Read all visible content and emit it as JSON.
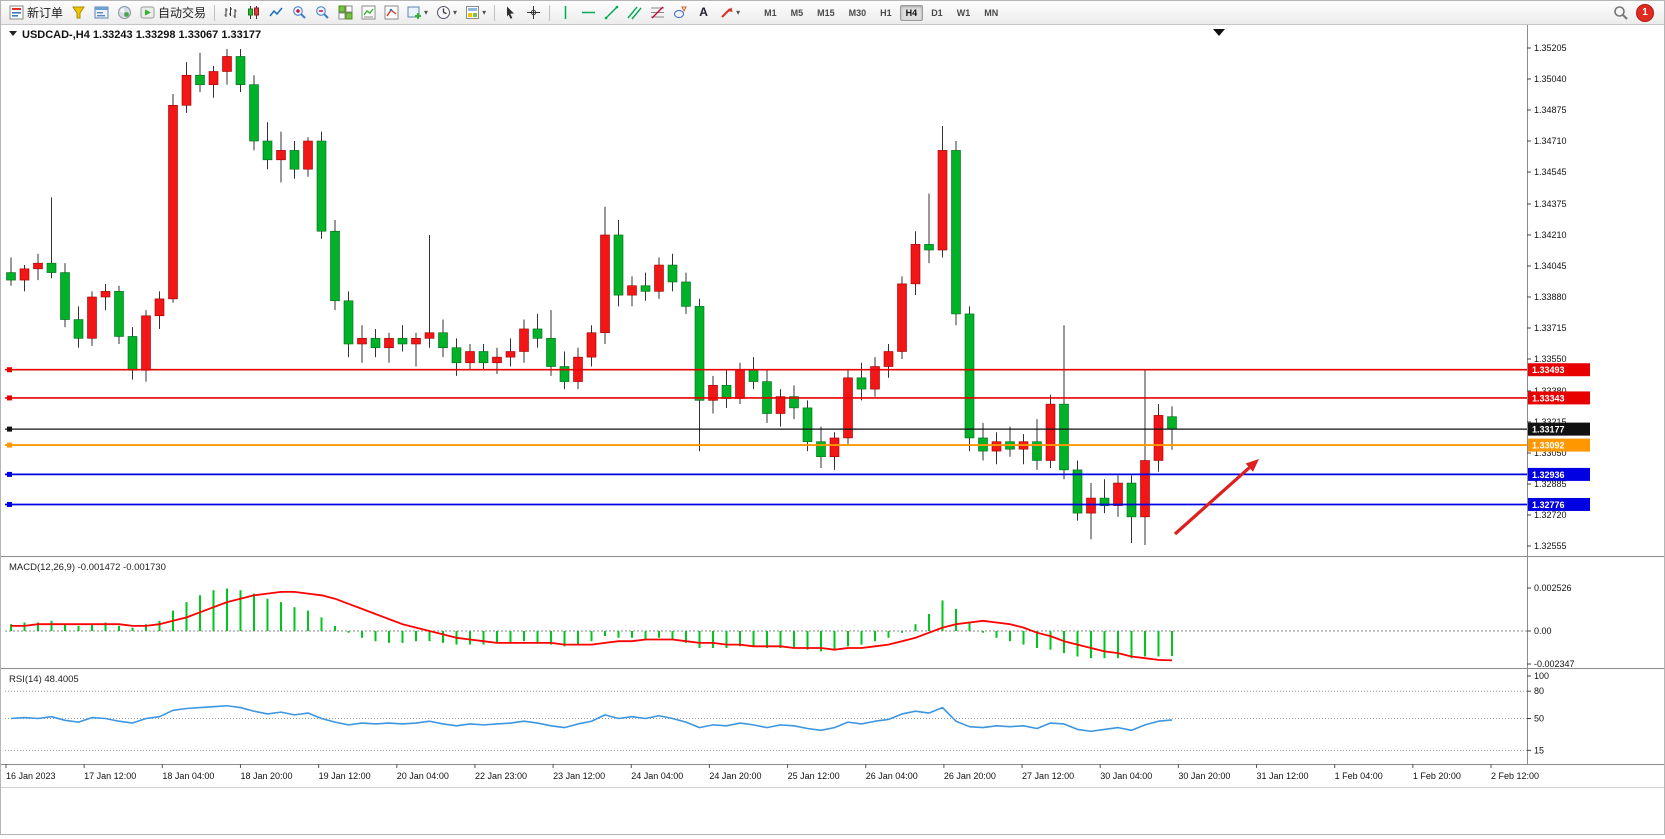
{
  "toolbar": {
    "new_order_label": "新订单",
    "autotrading_label": "自动交易",
    "timeframes": [
      "M1",
      "M5",
      "M15",
      "M30",
      "H1",
      "H4",
      "D1",
      "W1",
      "MN"
    ],
    "active_timeframe": "H4",
    "notification_count": "1"
  },
  "icons": {
    "caret_glyph": "▾",
    "text_tool_glyph": "A"
  },
  "chart": {
    "title_symbol": "USDCAD-,H4",
    "title_quotes": "1.33243 1.33298 1.33067 1.33177"
  },
  "chart_data": [
    {
      "type": "candlestick",
      "symbol": "USDCAD",
      "timeframe": "H4",
      "title": "USDCAD-,H4 1.33243 1.33298 1.33067 1.33177",
      "ylim": [
        1.32555,
        1.35205
      ],
      "y_axis_ticks": [
        "1.35205",
        "1.35040",
        "1.34875",
        "1.34710",
        "1.34545",
        "1.34375",
        "1.34210",
        "1.34045",
        "1.33880",
        "1.33715",
        "1.33550",
        "1.33380",
        "1.33215",
        "1.33050",
        "1.32885",
        "1.32720",
        "1.32555"
      ],
      "colors": {
        "bull": "#f21616",
        "bear": "#00b227",
        "wick": "#333333",
        "bull_edge": "#9e0000",
        "bear_edge": "#00691a"
      },
      "hlines": [
        {
          "price": 1.33493,
          "color": "#e80000",
          "label": "1.33493",
          "width": 1.6
        },
        {
          "price": 1.33343,
          "color": "#e80000",
          "label": "1.33343",
          "width": 1.6
        },
        {
          "price": 1.33177,
          "color": "#111111",
          "label": "1.33177",
          "width": 1.2,
          "role": "current-price"
        },
        {
          "price": 1.33092,
          "color": "#ff9800",
          "label": "1.33092",
          "width": 1.8
        },
        {
          "price": 1.32936,
          "color": "#0000e0",
          "label": "1.32936",
          "width": 1.8
        },
        {
          "price": 1.32776,
          "color": "#0000e0",
          "label": "1.32776",
          "width": 1.8
        }
      ],
      "annotation_arrow": {
        "from": [
          1174,
          509
        ],
        "to": [
          1258,
          434
        ],
        "color": "#dd1f1f"
      },
      "ohlc": [
        [
          1.3401,
          1.3409,
          1.3394,
          1.3397
        ],
        [
          1.3397,
          1.3405,
          1.3391,
          1.3403
        ],
        [
          1.3403,
          1.3411,
          1.3397,
          1.3406
        ],
        [
          1.3406,
          1.3441,
          1.3398,
          1.3401
        ],
        [
          1.3401,
          1.3406,
          1.3372,
          1.3376
        ],
        [
          1.3376,
          1.3383,
          1.3361,
          1.3366
        ],
        [
          1.3366,
          1.3391,
          1.3362,
          1.3388
        ],
        [
          1.3388,
          1.3395,
          1.3381,
          1.3391
        ],
        [
          1.3391,
          1.3394,
          1.3363,
          1.3367
        ],
        [
          1.3367,
          1.3372,
          1.3344,
          1.3349
        ],
        [
          1.3349,
          1.3381,
          1.3343,
          1.3378
        ],
        [
          1.3378,
          1.3391,
          1.3371,
          1.3387
        ],
        [
          1.3387,
          1.3496,
          1.3385,
          1.349
        ],
        [
          1.349,
          1.3513,
          1.3486,
          1.3506
        ],
        [
          1.3506,
          1.3518,
          1.3497,
          1.3501
        ],
        [
          1.3501,
          1.3511,
          1.3494,
          1.3508
        ],
        [
          1.3508,
          1.352,
          1.3501,
          1.3516
        ],
        [
          1.3516,
          1.352,
          1.3497,
          1.3501
        ],
        [
          1.3501,
          1.3506,
          1.3466,
          1.3471
        ],
        [
          1.3471,
          1.3481,
          1.3456,
          1.3461
        ],
        [
          1.3461,
          1.3476,
          1.3449,
          1.3466
        ],
        [
          1.3466,
          1.3471,
          1.3451,
          1.3456
        ],
        [
          1.3456,
          1.3473,
          1.3452,
          1.3471
        ],
        [
          1.3471,
          1.3476,
          1.3419,
          1.3423
        ],
        [
          1.3423,
          1.3429,
          1.3381,
          1.3386
        ],
        [
          1.3386,
          1.3391,
          1.3356,
          1.3363
        ],
        [
          1.3363,
          1.3373,
          1.3353,
          1.3366
        ],
        [
          1.3366,
          1.3371,
          1.3356,
          1.3361
        ],
        [
          1.3361,
          1.3369,
          1.3353,
          1.3366
        ],
        [
          1.3366,
          1.3373,
          1.3359,
          1.3363
        ],
        [
          1.3363,
          1.3369,
          1.3351,
          1.3366
        ],
        [
          1.3366,
          1.3421,
          1.3361,
          1.3369
        ],
        [
          1.3369,
          1.3376,
          1.3356,
          1.3361
        ],
        [
          1.3361,
          1.3366,
          1.3346,
          1.3353
        ],
        [
          1.3353,
          1.3363,
          1.3349,
          1.3359
        ],
        [
          1.3359,
          1.3363,
          1.3349,
          1.3353
        ],
        [
          1.3353,
          1.3361,
          1.3347,
          1.3356
        ],
        [
          1.3356,
          1.3366,
          1.3351,
          1.3359
        ],
        [
          1.3359,
          1.3376,
          1.3353,
          1.3371
        ],
        [
          1.3371,
          1.3379,
          1.3361,
          1.3366
        ],
        [
          1.3366,
          1.3381,
          1.3346,
          1.3351
        ],
        [
          1.3351,
          1.3359,
          1.3339,
          1.3343
        ],
        [
          1.3343,
          1.3361,
          1.3339,
          1.3356
        ],
        [
          1.3356,
          1.3373,
          1.3351,
          1.3369
        ],
        [
          1.3369,
          1.3436,
          1.3363,
          1.3421
        ],
        [
          1.3421,
          1.3429,
          1.3383,
          1.3389
        ],
        [
          1.3389,
          1.3399,
          1.3383,
          1.3394
        ],
        [
          1.3394,
          1.3401,
          1.3386,
          1.3391
        ],
        [
          1.3391,
          1.3409,
          1.3387,
          1.3405
        ],
        [
          1.3405,
          1.3411,
          1.3391,
          1.3396
        ],
        [
          1.3396,
          1.3401,
          1.3379,
          1.3383
        ],
        [
          1.3383,
          1.3387,
          1.3306,
          1.3333
        ],
        [
          1.3333,
          1.3346,
          1.3326,
          1.3341
        ],
        [
          1.3341,
          1.3349,
          1.3329,
          1.3334
        ],
        [
          1.3334,
          1.3353,
          1.3331,
          1.3349
        ],
        [
          1.3349,
          1.3356,
          1.3339,
          1.3343
        ],
        [
          1.3343,
          1.3349,
          1.3321,
          1.3326
        ],
        [
          1.3326,
          1.3339,
          1.3319,
          1.3335
        ],
        [
          1.3335,
          1.3341,
          1.3323,
          1.3329
        ],
        [
          1.3329,
          1.3333,
          1.3306,
          1.3311
        ],
        [
          1.3311,
          1.3319,
          1.3297,
          1.3303
        ],
        [
          1.3303,
          1.3316,
          1.3296,
          1.3313
        ],
        [
          1.3313,
          1.3349,
          1.3309,
          1.3345
        ],
        [
          1.3345,
          1.3353,
          1.3333,
          1.3339
        ],
        [
          1.3339,
          1.3356,
          1.3335,
          1.3351
        ],
        [
          1.3351,
          1.3363,
          1.3345,
          1.3359
        ],
        [
          1.3359,
          1.3399,
          1.3355,
          1.3395
        ],
        [
          1.3395,
          1.3423,
          1.3389,
          1.3416
        ],
        [
          1.3416,
          1.3443,
          1.3406,
          1.3413
        ],
        [
          1.3413,
          1.3479,
          1.3409,
          1.3466
        ],
        [
          1.3466,
          1.3471,
          1.3373,
          1.3379
        ],
        [
          1.3379,
          1.3383,
          1.3306,
          1.3313
        ],
        [
          1.3313,
          1.3321,
          1.3301,
          1.3306
        ],
        [
          1.3306,
          1.3316,
          1.3299,
          1.3311
        ],
        [
          1.3311,
          1.3319,
          1.3303,
          1.3307
        ],
        [
          1.3307,
          1.3315,
          1.3299,
          1.3311
        ],
        [
          1.3311,
          1.3323,
          1.3296,
          1.3301
        ],
        [
          1.3301,
          1.3336,
          1.3297,
          1.3331
        ],
        [
          1.3331,
          1.3373,
          1.3291,
          1.3296
        ],
        [
          1.3296,
          1.3301,
          1.3269,
          1.3273
        ],
        [
          1.3273,
          1.3289,
          1.3259,
          1.3281
        ],
        [
          1.3281,
          1.3291,
          1.3273,
          1.3277
        ],
        [
          1.3277,
          1.3293,
          1.3271,
          1.3289
        ],
        [
          1.3289,
          1.3293,
          1.3257,
          1.3271
        ],
        [
          1.3271,
          1.3349,
          1.3256,
          1.3301
        ],
        [
          1.3301,
          1.3331,
          1.3295,
          1.3325
        ],
        [
          1.33243,
          1.33298,
          1.33067,
          1.33177
        ]
      ]
    },
    {
      "type": "bar",
      "name": "MACD",
      "label": "MACD(12,26,9) -0.001472 -0.001730",
      "params": "12,26,9",
      "last_macd": -0.001472,
      "last_signal": -0.00173,
      "y_axis_ticks": [
        "0.002526",
        "0.00",
        "-0.002347"
      ],
      "y_axis_values": [
        0.002526,
        0,
        -0.002347
      ],
      "colors": {
        "histogram": "#00c61c",
        "signal": "#ff0000"
      },
      "values": [
        0.0004,
        0.0005,
        0.0005,
        0.0006,
        0.0004,
        0.0003,
        0.0004,
        0.0005,
        0.0003,
        0.0002,
        0.0004,
        0.0006,
        0.0012,
        0.0017,
        0.0021,
        0.0024,
        0.0025,
        0.0024,
        0.0022,
        0.0019,
        0.0017,
        0.0014,
        0.0012,
        0.0008,
        0.0003,
        -0.0001,
        -0.0004,
        -0.0006,
        -0.0007,
        -0.0007,
        -0.0006,
        -0.0006,
        -0.0007,
        -0.0008,
        -0.0008,
        -0.0008,
        -0.0007,
        -0.0007,
        -0.0006,
        -0.0007,
        -0.0008,
        -0.0009,
        -0.0008,
        -0.0006,
        -0.0003,
        -0.0004,
        -0.0004,
        -0.0005,
        -0.0004,
        -0.0005,
        -0.0007,
        -0.001,
        -0.001,
        -0.001,
        -0.0009,
        -0.0009,
        -0.001,
        -0.001,
        -0.001,
        -0.0011,
        -0.0012,
        -0.0011,
        -0.0009,
        -0.0008,
        -0.0006,
        -0.0004,
        -0.0001,
        0.0004,
        0.001,
        0.0018,
        0.0013,
        0.0005,
        -0.0001,
        -0.0004,
        -0.0006,
        -0.0008,
        -0.001,
        -0.0011,
        -0.0013,
        -0.0015,
        -0.0016,
        -0.0016,
        -0.0016,
        -0.0016,
        -0.0015,
        -0.0015,
        -0.001472
      ],
      "signal": [
        0.0003,
        0.0003,
        0.0004,
        0.0004,
        0.0004,
        0.0004,
        0.0004,
        0.0004,
        0.0004,
        0.0003,
        0.0003,
        0.0004,
        0.0006,
        0.0008,
        0.0011,
        0.0014,
        0.0017,
        0.0019,
        0.0021,
        0.0022,
        0.0023,
        0.0023,
        0.0022,
        0.0021,
        0.0019,
        0.0016,
        0.0013,
        0.001,
        0.0007,
        0.0004,
        0.0002,
        0.0,
        -0.0002,
        -0.0004,
        -0.0005,
        -0.0006,
        -0.0007,
        -0.0007,
        -0.0007,
        -0.0007,
        -0.0007,
        -0.0008,
        -0.0008,
        -0.0008,
        -0.0007,
        -0.0006,
        -0.0006,
        -0.0005,
        -0.0005,
        -0.0005,
        -0.0006,
        -0.0007,
        -0.0007,
        -0.0008,
        -0.0008,
        -0.0009,
        -0.0009,
        -0.0009,
        -0.001,
        -0.001,
        -0.001,
        -0.0011,
        -0.001,
        -0.001,
        -0.0009,
        -0.0008,
        -0.0006,
        -0.0004,
        -0.0001,
        0.0002,
        0.0004,
        0.0005,
        0.0006,
        0.0005,
        0.0004,
        0.0002,
        -0.0001,
        -0.0003,
        -0.0006,
        -0.0008,
        -0.001,
        -0.0012,
        -0.0013,
        -0.0015,
        -0.0016,
        -0.0017,
        -0.00173
      ]
    },
    {
      "type": "line",
      "name": "RSI",
      "label": "RSI(14) 48.4005",
      "params": "14",
      "last_value": 48.4005,
      "y_axis_ticks": [
        "100",
        "80",
        "50",
        "15"
      ],
      "y_axis_values": [
        100,
        80,
        50,
        15
      ],
      "level_lines": [
        80,
        50,
        15
      ],
      "colors": {
        "line": "#3d96e0"
      },
      "values": [
        50,
        51,
        50,
        52,
        48,
        46,
        51,
        50,
        47,
        45,
        50,
        52,
        59,
        61,
        62,
        63,
        64,
        62,
        58,
        55,
        57,
        54,
        56,
        50,
        46,
        43,
        45,
        44,
        45,
        44,
        45,
        47,
        44,
        42,
        44,
        43,
        44,
        45,
        47,
        45,
        42,
        40,
        44,
        47,
        54,
        50,
        52,
        50,
        53,
        50,
        46,
        40,
        43,
        42,
        45,
        43,
        40,
        43,
        42,
        39,
        37,
        40,
        46,
        44,
        47,
        49,
        55,
        58,
        56,
        62,
        47,
        41,
        40,
        42,
        41,
        42,
        39,
        45,
        44,
        38,
        36,
        38,
        40,
        37,
        43,
        47,
        48.4005
      ]
    }
  ],
  "time_axis": {
    "labels": [
      "16 Jan 2023",
      "17 Jan 12:00",
      "18 Jan 04:00",
      "18 Jan 20:00",
      "19 Jan 12:00",
      "20 Jan 04:00",
      "22 Jan 23:00",
      "23 Jan 12:00",
      "24 Jan 04:00",
      "24 Jan 20:00",
      "25 Jan 12:00",
      "26 Jan 04:00",
      "26 Jan 20:00",
      "27 Jan 12:00",
      "30 Jan 04:00",
      "30 Jan 20:00",
      "31 Jan 12:00",
      "1 Feb 04:00",
      "1 Feb 20:00",
      "2 Feb 12:00"
    ]
  }
}
